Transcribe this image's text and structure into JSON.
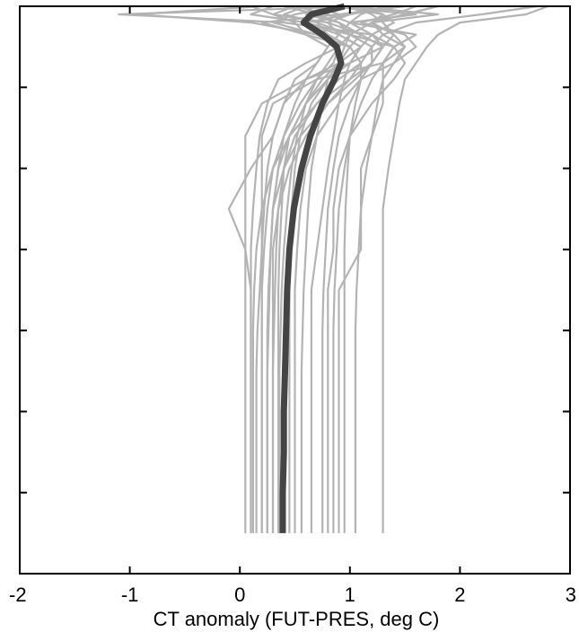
{
  "chart_data": {
    "type": "line",
    "title": "",
    "xlabel": "CT anomaly (FUT-PRES, deg C)",
    "ylabel": "",
    "xlim": [
      -2,
      3
    ],
    "ylim": [
      0,
      7
    ],
    "y_direction": "top-down",
    "y_tick_labels_shown": false,
    "grid": false,
    "legend": "none",
    "x_ticks": [
      -2,
      -1,
      0,
      1,
      2,
      3
    ],
    "x_tick_labels": [
      "-2",
      "-1",
      "0",
      "1",
      "2",
      "3"
    ],
    "y_ticks": [
      1,
      2,
      3,
      4,
      5,
      6
    ],
    "y": [
      0,
      0.1,
      0.2,
      0.35,
      0.5,
      0.7,
      0.9,
      1.2,
      1.6,
      2.0,
      2.5,
      3.0,
      3.5,
      4.0,
      4.5,
      5.0,
      5.5,
      6.0,
      6.5
    ],
    "colors": {
      "ensemble": "#b3b3b3",
      "mean": "#444444",
      "axes": "#000000"
    },
    "series": [
      {
        "role": "mean",
        "values": [
          0.95,
          0.65,
          0.58,
          0.75,
          0.88,
          0.92,
          0.86,
          0.75,
          0.64,
          0.56,
          0.49,
          0.45,
          0.43,
          0.42,
          0.41,
          0.4,
          0.4,
          0.39,
          0.39
        ]
      },
      {
        "role": "member",
        "values": [
          1.1,
          -1.1,
          0.4,
          1.2,
          1.3,
          1.0,
          0.6,
          0.2,
          0.05,
          0.05,
          0.05,
          0.05,
          0.05,
          0.05,
          0.05,
          0.05,
          0.05,
          0.05,
          0.05
        ]
      },
      {
        "role": "member",
        "values": [
          0.2,
          -0.95,
          0.1,
          0.7,
          0.9,
          0.6,
          0.35,
          0.25,
          0.18,
          0.15,
          0.12,
          0.1,
          0.1,
          0.1,
          0.1,
          0.1,
          0.1,
          0.1,
          0.1
        ]
      },
      {
        "role": "member",
        "values": [
          0.5,
          0.3,
          0.8,
          0.9,
          1.1,
          0.9,
          0.6,
          0.4,
          0.3,
          0.25,
          0.22,
          0.2,
          0.18,
          0.16,
          0.15,
          0.15,
          0.15,
          0.15,
          0.15
        ]
      },
      {
        "role": "member",
        "values": [
          1.0,
          1.8,
          1.2,
          1.4,
          1.5,
          1.3,
          0.7,
          0.3,
          0.2,
          0.2,
          0.2,
          0.2,
          0.2,
          0.2,
          0.2,
          0.2,
          0.2,
          0.2,
          0.2
        ]
      },
      {
        "role": "member",
        "values": [
          2.7,
          2.2,
          1.6,
          1.3,
          1.2,
          1.1,
          0.9,
          0.7,
          0.5,
          0.4,
          0.3,
          0.28,
          0.26,
          0.25,
          0.25,
          0.25,
          0.25,
          0.25,
          0.25
        ]
      },
      {
        "role": "member",
        "values": [
          0.8,
          1.6,
          1.0,
          1.6,
          1.4,
          1.3,
          1.3,
          1.3,
          1.2,
          1.1,
          1.1,
          1.1,
          0.9,
          0.9,
          0.9,
          0.9,
          0.9,
          0.9,
          0.9
        ]
      },
      {
        "role": "member",
        "values": [
          1.5,
          0.9,
          0.2,
          0.6,
          1.0,
          1.1,
          1.0,
          0.8,
          0.6,
          0.45,
          0.35,
          0.3,
          0.3,
          0.3,
          0.3,
          0.3,
          0.3,
          0.3,
          0.3
        ]
      },
      {
        "role": "member",
        "values": [
          0.3,
          0.1,
          0.6,
          1.0,
          1.2,
          1.2,
          1.05,
          0.8,
          0.55,
          0.4,
          0.35,
          0.33,
          0.32,
          0.31,
          0.3,
          0.3,
          0.3,
          0.3,
          0.3
        ]
      },
      {
        "role": "member",
        "values": [
          2.8,
          2.6,
          2.0,
          1.8,
          1.7,
          1.6,
          1.5,
          1.45,
          1.4,
          1.35,
          1.3,
          1.3,
          1.3,
          1.3,
          1.3,
          1.3,
          1.3,
          1.3,
          1.3
        ]
      },
      {
        "role": "member",
        "values": [
          0.6,
          0.4,
          0.7,
          1.0,
          1.4,
          1.5,
          1.4,
          1.2,
          1.0,
          0.9,
          0.85,
          0.85,
          0.8,
          0.8,
          0.8,
          0.8,
          0.8,
          0.8,
          0.8
        ]
      },
      {
        "role": "member",
        "values": [
          1.2,
          1.0,
          0.8,
          1.1,
          1.3,
          1.2,
          1.0,
          0.7,
          0.45,
          0.35,
          0.3,
          0.28,
          0.27,
          0.26,
          0.25,
          0.25,
          0.25,
          0.25,
          0.25
        ]
      },
      {
        "role": "member",
        "values": [
          0.9,
          1.3,
          1.4,
          1.2,
          1.1,
          1.0,
          0.95,
          0.9,
          0.85,
          0.8,
          0.75,
          0.7,
          0.65,
          0.65,
          0.65,
          0.65,
          0.65,
          0.65,
          0.65
        ]
      },
      {
        "role": "member",
        "values": [
          0.4,
          0.7,
          0.9,
          1.0,
          0.9,
          0.8,
          0.7,
          0.6,
          0.52,
          0.47,
          0.43,
          0.4,
          0.38,
          0.37,
          0.36,
          0.36,
          0.36,
          0.36,
          0.36
        ]
      },
      {
        "role": "member",
        "values": [
          1.8,
          1.5,
          1.2,
          1.0,
          0.95,
          0.9,
          0.8,
          0.6,
          0.45,
          0.4,
          0.38,
          0.36,
          0.35,
          0.35,
          0.35,
          0.35,
          0.35,
          0.35,
          0.35
        ]
      },
      {
        "role": "member",
        "values": [
          0.7,
          0.9,
          0.7,
          0.8,
          1.0,
          1.1,
          1.1,
          1.0,
          0.9,
          0.85,
          0.8,
          0.78,
          0.76,
          0.75,
          0.75,
          0.75,
          0.75,
          0.75,
          0.75
        ]
      },
      {
        "role": "member",
        "values": [
          1.3,
          1.1,
          1.0,
          1.2,
          1.4,
          1.3,
          1.2,
          1.1,
          1.0,
          0.95,
          0.9,
          0.88,
          0.86,
          0.85,
          0.85,
          0.85,
          0.85,
          0.85,
          0.85
        ]
      },
      {
        "role": "member",
        "values": [
          0.1,
          0.3,
          0.5,
          0.6,
          0.8,
          0.7,
          0.5,
          0.4,
          0.3,
          0.1,
          -0.1,
          0.05,
          0.1,
          0.1,
          0.1,
          0.1,
          0.1,
          0.1,
          0.1
        ]
      },
      {
        "role": "member",
        "values": [
          1.6,
          1.4,
          1.1,
          1.5,
          1.6,
          1.4,
          1.1,
          0.9,
          0.7,
          0.6,
          0.55,
          0.52,
          0.5,
          0.5,
          0.5,
          0.5,
          0.5,
          0.5,
          0.5
        ]
      },
      {
        "role": "member",
        "values": [
          0.8,
          0.6,
          0.9,
          1.1,
          1.0,
          0.9,
          0.8,
          0.75,
          0.7,
          0.65,
          0.62,
          0.6,
          0.58,
          0.57,
          0.56,
          0.56,
          0.56,
          0.56,
          0.56
        ]
      },
      {
        "role": "member",
        "values": [
          1.0,
          1.2,
          1.3,
          1.4,
          1.3,
          1.2,
          1.1,
          1.05,
          1.0,
          0.98,
          0.96,
          0.95,
          0.95,
          0.95,
          0.95,
          0.95,
          0.95,
          0.95,
          0.95
        ]
      },
      {
        "role": "member",
        "values": [
          0.5,
          0.8,
          1.0,
          0.9,
          0.8,
          0.7,
          0.6,
          0.5,
          0.4,
          0.35,
          0.3,
          0.28,
          0.26,
          0.25,
          0.25,
          0.25,
          0.25,
          0.25,
          0.25
        ]
      },
      {
        "role": "member",
        "values": [
          1.4,
          1.0,
          0.6,
          0.9,
          1.1,
          1.0,
          0.8,
          0.65,
          0.55,
          0.5,
          0.47,
          0.45,
          0.45,
          0.45,
          0.45,
          0.45,
          0.45,
          0.45,
          0.45
        ]
      },
      {
        "role": "member",
        "values": [
          0.9,
          0.5,
          0.3,
          0.7,
          1.0,
          0.9,
          0.75,
          0.6,
          0.45,
          0.3,
          0.2,
          0.15,
          0.13,
          0.12,
          0.12,
          0.12,
          0.12,
          0.12,
          0.12
        ]
      },
      {
        "role": "member",
        "values": [
          1.1,
          1.3,
          1.2,
          1.3,
          1.5,
          1.4,
          1.3,
          1.25,
          1.2,
          1.15,
          1.1,
          1.08,
          1.06,
          1.05,
          1.05,
          1.05,
          1.05,
          1.05,
          1.05
        ]
      },
      {
        "role": "member",
        "values": [
          0.6,
          0.7,
          0.6,
          0.8,
          0.9,
          0.85,
          0.7,
          0.55,
          0.4,
          0.3,
          0.25,
          0.22,
          0.2,
          0.2,
          0.2,
          0.2,
          0.2,
          0.2,
          0.2
        ]
      }
    ]
  }
}
